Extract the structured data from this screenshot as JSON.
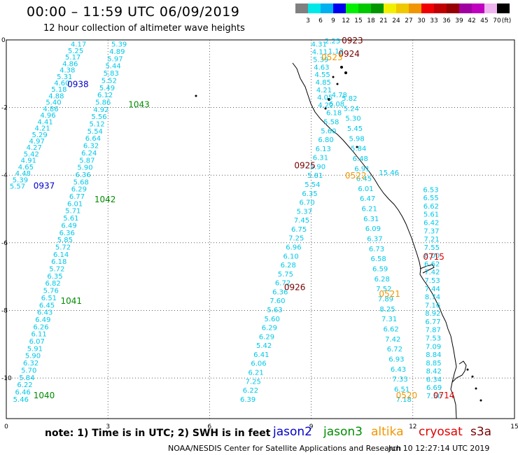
{
  "header": {
    "title": "00:00 – 11:59 UTC 06/09/2019",
    "subtitle": "12 hour collection of altimeter wave heights"
  },
  "colorbar": {
    "ticks": [
      "3",
      "6",
      "9",
      "12",
      "15",
      "18",
      "21",
      "24",
      "27",
      "30",
      "33",
      "36",
      "39",
      "42",
      "45",
      "70"
    ],
    "unit": "(ft)",
    "colors": [
      "#808080",
      "#00e8e8",
      "#00b0f0",
      "#0000f0",
      "#00f000",
      "#00c800",
      "#009600",
      "#f0f000",
      "#f0c800",
      "#f09600",
      "#f00000",
      "#c00000",
      "#960000",
      "#a000a0",
      "#c000c0",
      "#f0b4f0",
      "#000000"
    ]
  },
  "axes": {
    "x_ticks": [
      "0",
      "3",
      "6",
      "9",
      "12",
      "15"
    ],
    "y_ticks": [
      "0",
      "-2",
      "-4",
      "-6",
      "-8",
      "-10"
    ]
  },
  "passes": {
    "colors": {
      "jason2": "#0000c8",
      "jason3": "#008c00",
      "altika": "#f09600",
      "cryosat": "#e00000",
      "s3a": "#780000"
    },
    "labels": [
      {
        "text": "0938",
        "sat": "jason2",
        "lon": 1.8,
        "lat": -1.4
      },
      {
        "text": "0937",
        "sat": "jason2",
        "lon": 0.8,
        "lat": -4.4
      },
      {
        "text": "1043",
        "sat": "jason3",
        "lon": 3.6,
        "lat": -2.0
      },
      {
        "text": "1042",
        "sat": "jason3",
        "lon": 2.6,
        "lat": -4.8
      },
      {
        "text": "1041",
        "sat": "jason3",
        "lon": 1.6,
        "lat": -7.8
      },
      {
        "text": "1040",
        "sat": "jason3",
        "lon": 0.8,
        "lat": -10.6
      },
      {
        "text": "0923",
        "sat": "s3a",
        "lon": 9.9,
        "lat": -0.1
      },
      {
        "text": "0924",
        "sat": "s3a",
        "lon": 9.8,
        "lat": -0.5
      },
      {
        "text": "0925",
        "sat": "s3a",
        "lon": 8.5,
        "lat": -3.8
      },
      {
        "text": "0926",
        "sat": "s3a",
        "lon": 8.2,
        "lat": -7.4
      },
      {
        "text": "0523",
        "sat": "altika",
        "lon": 9.3,
        "lat": -0.6
      },
      {
        "text": "0522",
        "sat": "altika",
        "lon": 10.0,
        "lat": -4.1
      },
      {
        "text": "0521",
        "sat": "altika",
        "lon": 11.0,
        "lat": -7.6
      },
      {
        "text": "0520",
        "sat": "altika",
        "lon": 11.5,
        "lat": -10.6
      },
      {
        "text": "0715",
        "sat": "cryosat",
        "lon": 12.3,
        "lat": -6.5
      },
      {
        "text": "0714",
        "sat": "cryosat",
        "lon": 12.6,
        "lat": -10.6
      }
    ]
  },
  "tracks": [
    {
      "lon0": 1.9,
      "lat0": -0.2,
      "lon1": 0.1,
      "lat1": -4.4,
      "values": [
        "4.17",
        "5.25",
        "5.17",
        "4.86",
        "4.38",
        "5.31",
        "4.60",
        "5.18",
        "4.88",
        "5.40",
        "4.86",
        "4.96",
        "4.41",
        "4.21",
        "5.29",
        "4.97",
        "4.27",
        "5.42",
        "4.91",
        "4.65",
        "4.48",
        "5.39",
        "5.57"
      ]
    },
    {
      "lon0": 3.1,
      "lat0": -0.2,
      "lon1": 0.2,
      "lat1": -10.7,
      "values": [
        "5.39",
        "4.89",
        "5.97",
        "5.44",
        "5.83",
        "5.52",
        "5.49",
        "6.12",
        "5.86",
        "4.92",
        "5.56",
        "5.12",
        "5.54",
        "6.64",
        "6.32",
        "6.24",
        "5.87",
        "5.90",
        "6.36",
        "5.68",
        "6.29",
        "6.77",
        "6.01",
        "5.71",
        "5.61",
        "6.49",
        "6.36",
        "5.85",
        "5.72",
        "6.14",
        "6.18",
        "5.72",
        "6.35",
        "6.82",
        "5.76",
        "6.51",
        "6.45",
        "6.43",
        "6.49",
        "6.26",
        "6.11",
        "6.07",
        "5.91",
        "5.90",
        "6.32",
        "5.70",
        "5.84",
        "6.22",
        "6.46",
        "5.46"
      ]
    },
    {
      "lon0": 9.6,
      "lat0": -1.7,
      "lon1": 6.9,
      "lat1": -10.7,
      "values": [
        "4.78",
        "6.08",
        "6.18",
        "5.58",
        "5.60",
        "6.80",
        "6.13",
        "6.31",
        "5.90",
        "5.81",
        "5.54",
        "6.35",
        "6.70",
        "5.37",
        "7.45",
        "6.75",
        "7.25",
        "6.96",
        "6.10",
        "6.28",
        "5.75",
        "6.72",
        "6.36",
        "7.60",
        "5.63",
        "5.60",
        "6.29",
        "6.29",
        "5.42",
        "6.41",
        "6.06",
        "6.21",
        "7.25",
        "6.22",
        "6.39"
      ]
    },
    {
      "lon0": 9.9,
      "lat0": -1.8,
      "lon1": 11.5,
      "lat1": -10.7,
      "values": [
        "5.82",
        "5.24",
        "5.30",
        "5.45",
        "5.98",
        "5.84",
        "6.48",
        "6.91",
        "6.45",
        "6.01",
        "6.47",
        "6.21",
        "6.31",
        "6.09",
        "6.37",
        "6.73",
        "6.58",
        "6.59",
        "6.28",
        "7.52",
        "7.89",
        "8.25",
        "7.31",
        "6.62",
        "7.42",
        "6.72",
        "6.93",
        "6.43",
        "7.33",
        "6.51",
        "7.18"
      ]
    },
    {
      "lon0": 12.3,
      "lat0": -4.5,
      "lon1": 12.4,
      "lat1": -10.6,
      "values": [
        "6.53",
        "6.55",
        "6.62",
        "5.61",
        "6.42",
        "7.37",
        "7.21",
        "7.55",
        "8.00",
        "6.62",
        "7.42",
        "7.53",
        "7.44",
        "8.74",
        "7.16",
        "8.92",
        "6.77",
        "7.87",
        "7.53",
        "7.09",
        "8.84",
        "8.85",
        "8.42",
        "6.34",
        "6.69",
        "7.50"
      ]
    },
    {
      "lon0": 9.0,
      "lat0": -0.2,
      "lon1": 9.2,
      "lat1": -2.0,
      "gray": true,
      "values": [
        "4.31",
        "4.11",
        "5.39",
        "4.63",
        "4.55",
        "4.85",
        "4.21",
        "4.05",
        "4.22"
      ]
    }
  ],
  "extras": [
    {
      "text": "2.25",
      "lon": 9.4,
      "lat": -0.1,
      "color": "#808080"
    },
    {
      "text": "1.12",
      "lon": 9.5,
      "lat": -0.4,
      "color": "#808080"
    },
    {
      "text": "15.46",
      "lon": 11.0,
      "lat": -4.0,
      "color": "#009600"
    }
  ],
  "note": "note:  1) Time is in UTC;  2) SWH is in feet",
  "legend": [
    {
      "sat": "jason2",
      "label": "jason2"
    },
    {
      "sat": "jason3",
      "label": "jason3"
    },
    {
      "sat": "altika",
      "label": "altika"
    },
    {
      "sat": "cryosat",
      "label": "cryosat"
    },
    {
      "sat": "s3a",
      "label": "s3a"
    }
  ],
  "footer": "NOAA/NESDIS Center for Satellite Applications and Research",
  "footer_time": "Jun 10 12:27:14 UTC 2019"
}
